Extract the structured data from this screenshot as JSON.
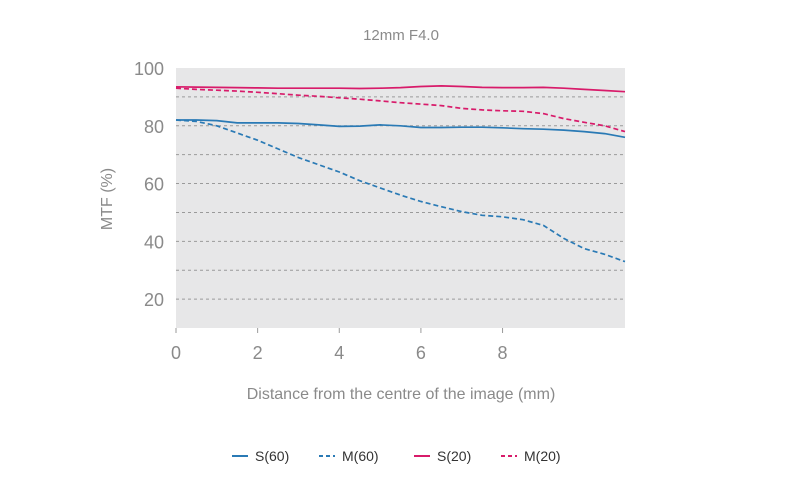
{
  "chart_data": {
    "type": "line",
    "title": "12mm F4.0",
    "xlabel": "Distance from the centre of the image (mm)",
    "ylabel": "MTF (%)",
    "xlim": [
      0,
      11
    ],
    "ylim": [
      10,
      100
    ],
    "x_ticks": [
      0,
      2,
      4,
      6,
      8
    ],
    "y_ticks": [
      20,
      40,
      60,
      80,
      100
    ],
    "grid_lines": [
      20,
      30,
      40,
      50,
      60,
      70,
      80,
      90
    ],
    "grid": true,
    "legend_placement": "bottom",
    "series": [
      {
        "name": "S(60)",
        "color": "#2a7ab5",
        "dash": false,
        "x": [
          0,
          0.5,
          1,
          1.5,
          2,
          2.5,
          3,
          3.5,
          4,
          4.5,
          5,
          5.5,
          6,
          6.5,
          7,
          7.5,
          8,
          8.5,
          9,
          9.5,
          10,
          10.5,
          11
        ],
        "y": [
          82,
          82,
          81.8,
          81,
          81,
          81,
          80.8,
          80.3,
          79.8,
          79.9,
          80.3,
          80,
          79.4,
          79.4,
          79.5,
          79.5,
          79.3,
          79,
          78.8,
          78.5,
          78,
          77.3,
          76
        ]
      },
      {
        "name": "M(60)",
        "color": "#2a7ab5",
        "dash": true,
        "x": [
          0,
          0.5,
          1,
          1.5,
          2,
          2.5,
          3,
          3.5,
          4,
          4.5,
          5,
          5.5,
          6,
          6.5,
          7,
          7.5,
          8,
          8.5,
          9,
          9.5,
          10,
          10.5,
          11
        ],
        "y": [
          82,
          81.5,
          80,
          77.5,
          75,
          72,
          69,
          66.5,
          64,
          61,
          58.5,
          56,
          53.8,
          52,
          50.3,
          49,
          48.5,
          47.5,
          45.5,
          41,
          37.5,
          35.5,
          33
        ]
      },
      {
        "name": "S(20)",
        "color": "#d81b6a",
        "dash": false,
        "x": [
          0,
          0.5,
          1,
          1.5,
          2,
          2.5,
          3,
          3.5,
          4,
          4.5,
          5,
          5.5,
          6,
          6.5,
          7,
          7.5,
          8,
          8.5,
          9,
          9.5,
          10,
          10.5,
          11
        ],
        "y": [
          93.5,
          93.4,
          93.3,
          93.2,
          93.1,
          93,
          93,
          93,
          93,
          92.9,
          93,
          93.2,
          93.6,
          93.8,
          93.6,
          93.3,
          93.2,
          93.2,
          93.3,
          93,
          92.6,
          92.2,
          91.8
        ]
      },
      {
        "name": "M(20)",
        "color": "#d81b6a",
        "dash": true,
        "x": [
          0,
          0.5,
          1,
          1.5,
          2,
          2.5,
          3,
          3.5,
          4,
          4.5,
          5,
          5.5,
          6,
          6.5,
          7,
          7.5,
          8,
          8.5,
          9,
          9.5,
          10,
          10.5,
          11
        ],
        "y": [
          93,
          92.6,
          92.3,
          92,
          91.6,
          91.1,
          90.6,
          90.2,
          89.7,
          89.2,
          88.6,
          88,
          87.5,
          87,
          86,
          85.5,
          85.2,
          85,
          84.2,
          82.5,
          81.2,
          80,
          78
        ]
      }
    ]
  }
}
